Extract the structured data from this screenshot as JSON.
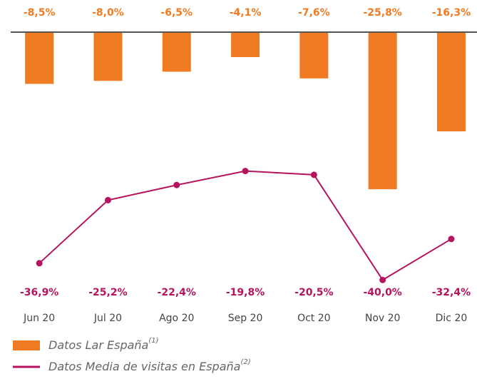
{
  "chart_data": {
    "type": "bar_line",
    "categories": [
      "Jun 20",
      "Jul 20",
      "Ago 20",
      "Sep 20",
      "Oct 20",
      "Nov 20",
      "Dic 20"
    ],
    "series": [
      {
        "name": "Datos Lar España",
        "note": "(1)",
        "color": "#f07b22",
        "type": "bar",
        "values": [
          -8.5,
          -8.0,
          -6.5,
          -4.1,
          -7.6,
          -25.8,
          -16.3
        ],
        "value_labels": [
          "-8,5%",
          "-8,0%",
          "-6,5%",
          "-4,1%",
          "-7,6%",
          "-25,8%",
          "-16,3%"
        ]
      },
      {
        "name": "Datos Media de visitas en España",
        "note": "(2)",
        "color": "#b5135e",
        "type": "line",
        "axis": "y2",
        "values": [
          -36.9,
          -25.2,
          -22.4,
          -19.8,
          -20.5,
          -40.0,
          -32.4
        ],
        "value_labels": [
          "-36,9%",
          "-25,2%",
          "-22,4%",
          "-19,8%",
          "-20,5%",
          "-40,0%",
          "-32,4%"
        ]
      }
    ],
    "ylim": [
      -32,
      0
    ],
    "y2lim": [
      -45,
      0
    ]
  }
}
